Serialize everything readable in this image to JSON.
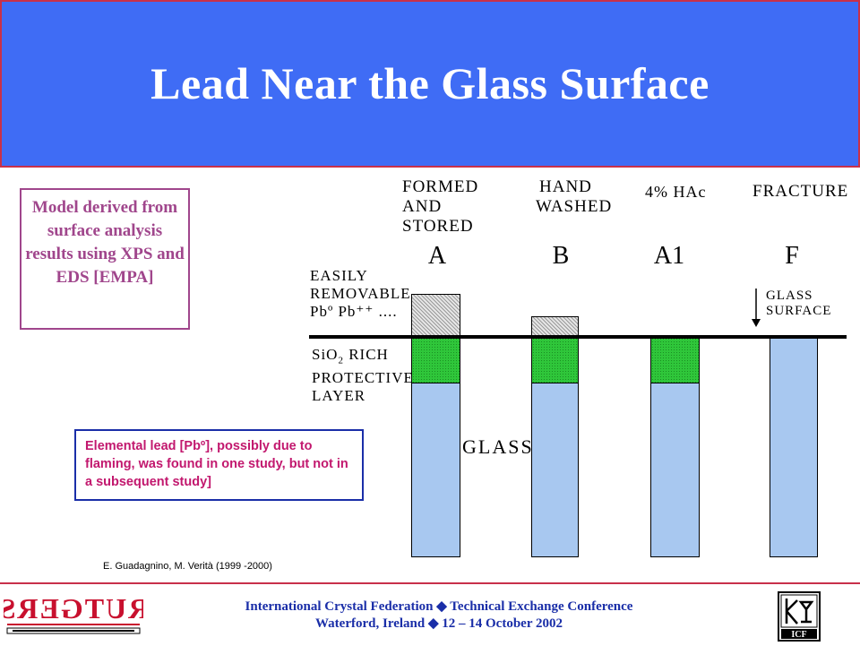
{
  "title": "Lead Near the Glass Surface",
  "model_note": "Model derived from surface analysis results using XPS and EDS [EMPA]",
  "columns": [
    {
      "heading": [
        "FORMED",
        "AND",
        "STORED"
      ],
      "letter": "A"
    },
    {
      "heading": [
        "HAND",
        "WASHED"
      ],
      "letter": "B"
    },
    {
      "heading": [
        "4% HAc"
      ],
      "letter": "A1"
    },
    {
      "heading": [
        "FRACTURE"
      ],
      "letter": "F"
    }
  ],
  "layer_labels": {
    "removable": [
      "EASILY",
      "REMOVABLE"
    ],
    "removable_species": "Pbº Pb⁺⁺ ....",
    "protective": [
      "SiO",
      "2",
      " RICH",
      "PROTECTIVE",
      "LAYER"
    ],
    "glass": "GLASS",
    "glass_surface": [
      "GLASS",
      "SURFACE"
    ]
  },
  "lead_note": "Elemental lead [Pbº], possibly due to flaming, was found in one study, but not in a subsequent study]",
  "citation": "E. Guadagnino, M. Verità (1999 -2000)",
  "footer": {
    "line1_a": "International Crystal Federation",
    "separator": "◆",
    "line1_b": "Technical Exchange Conference",
    "line2_a": "Waterford, Ireland",
    "line2_b": "12 – 14 October 2002"
  },
  "logos": {
    "left": "RUTGERS",
    "right": "ICF"
  },
  "colors": {
    "title_bg": "#3f6cf5",
    "glass": "#a8c8f0",
    "protective": "#2fc63a",
    "footer_text": "#1a2ea8",
    "note_text": "#c2186e"
  }
}
